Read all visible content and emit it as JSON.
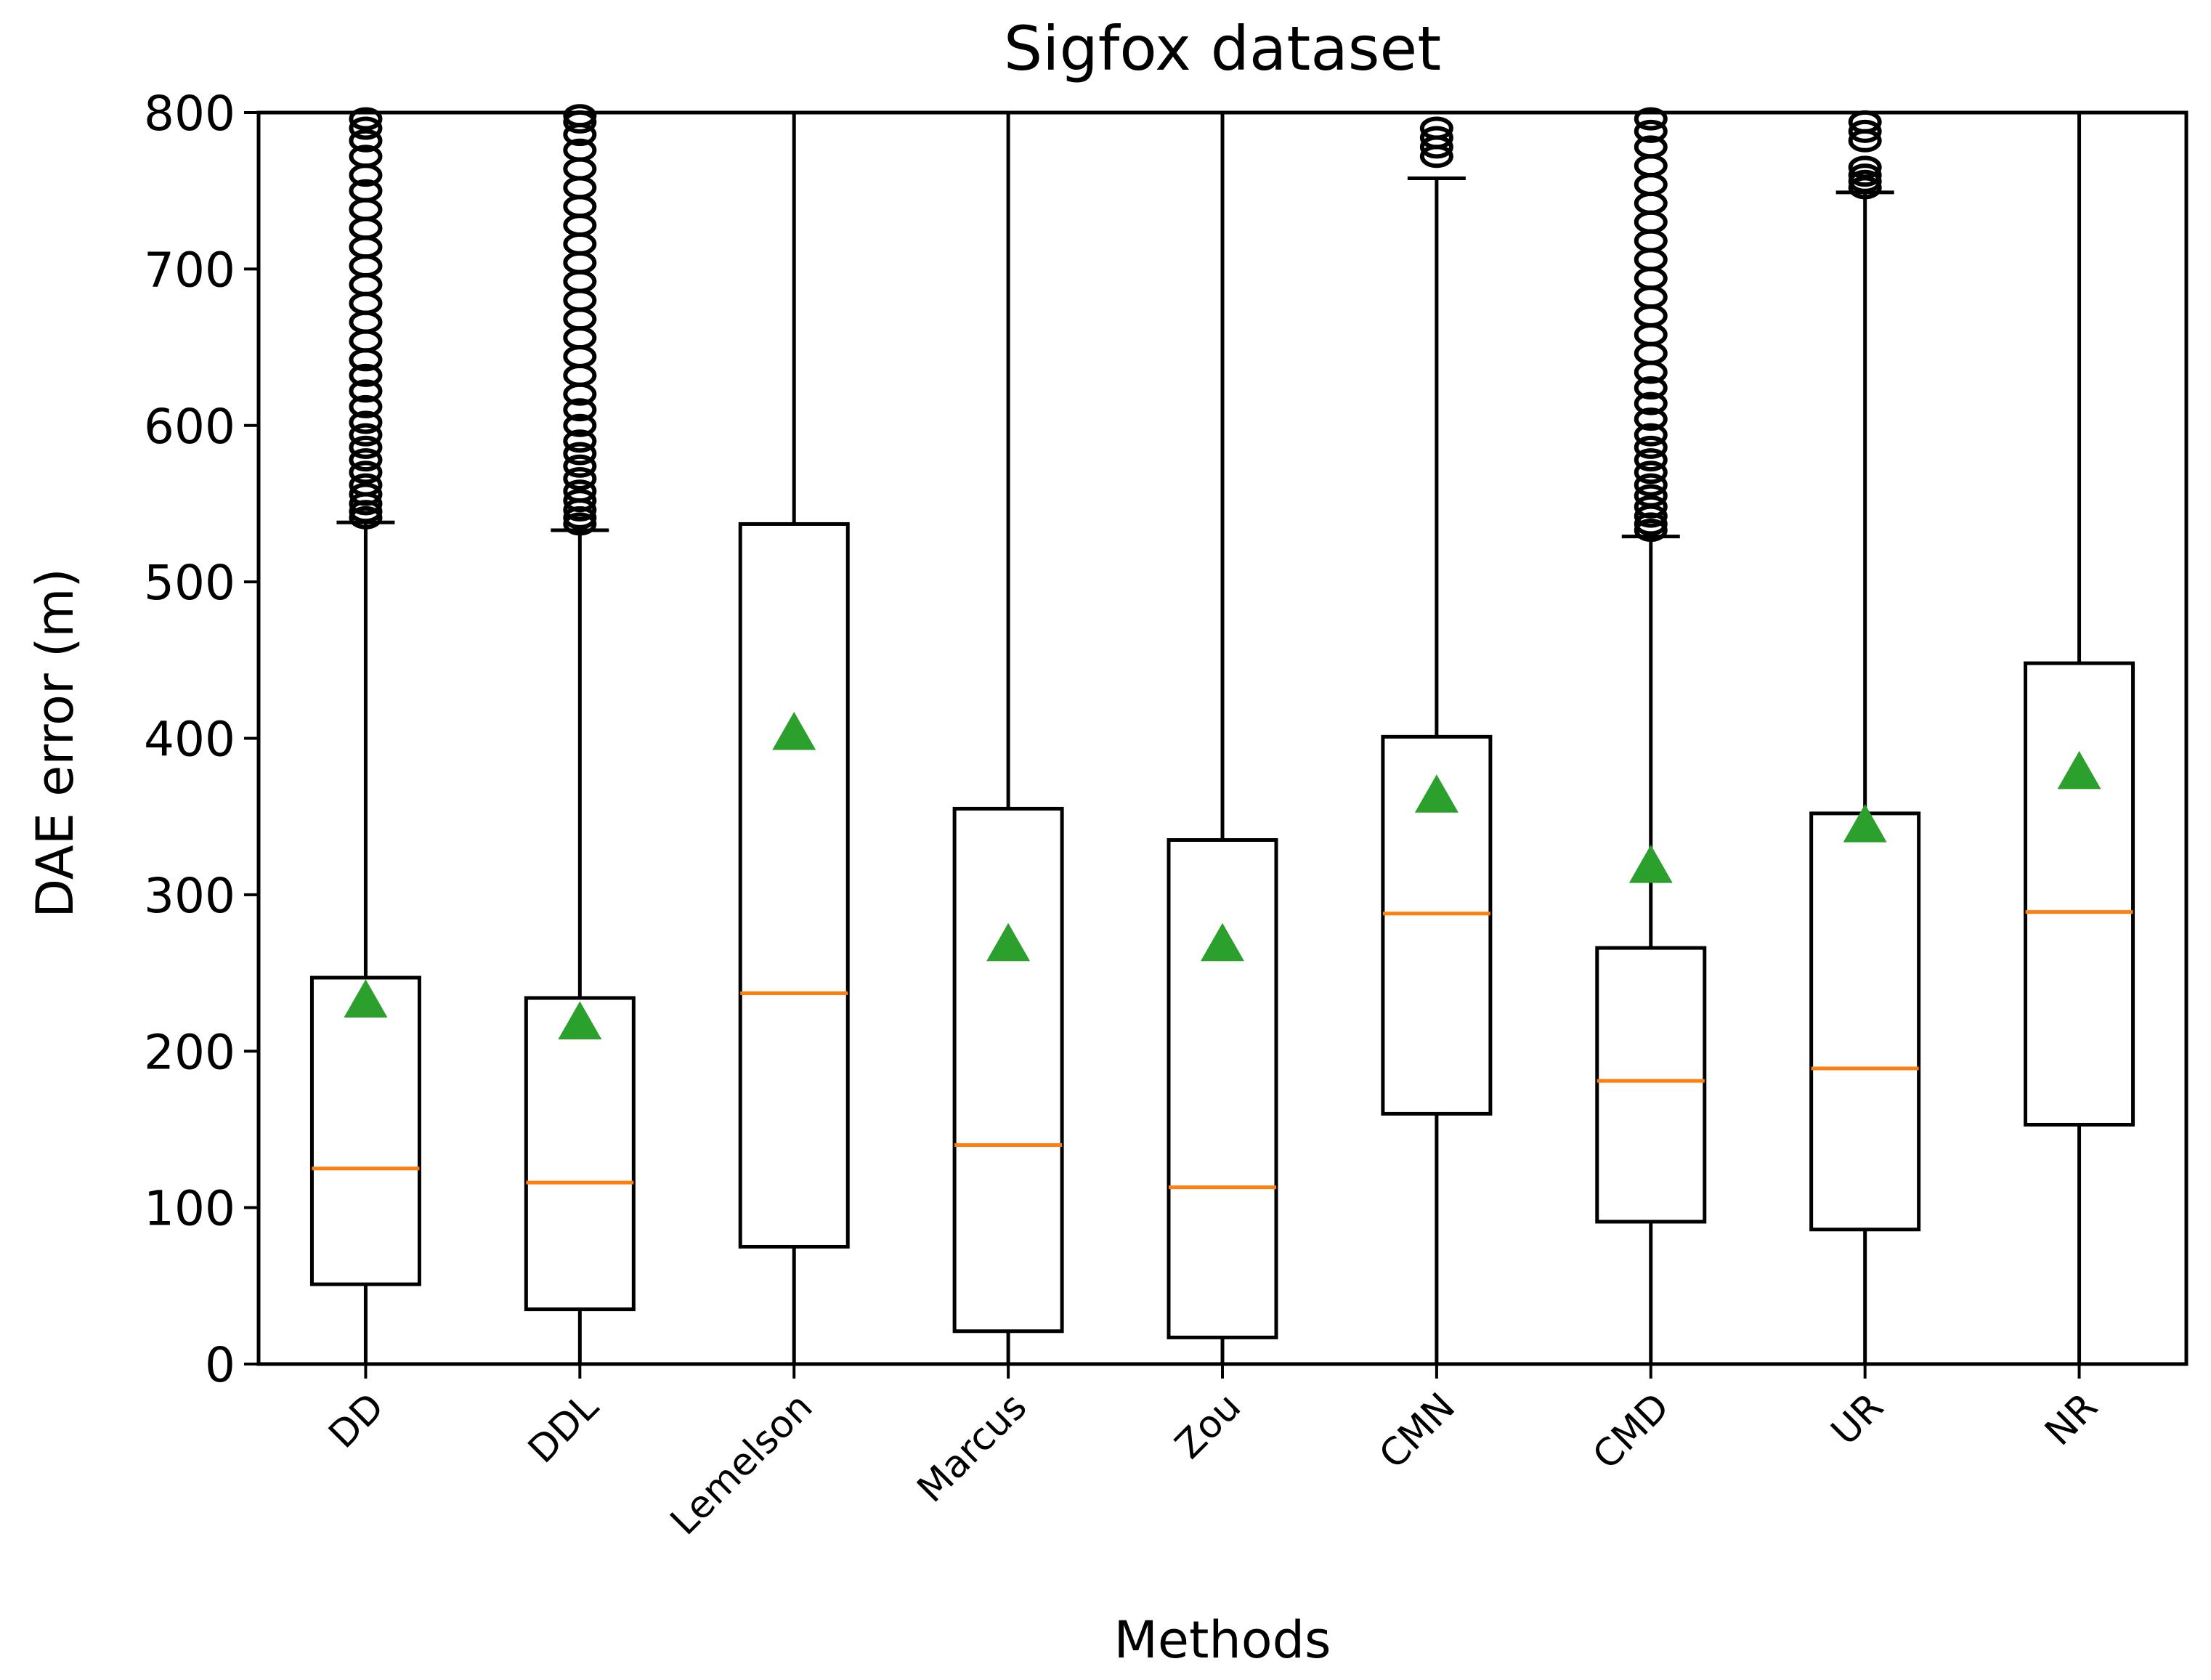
{
  "chart_data": {
    "type": "boxplot",
    "title": "Sigfox dataset",
    "xlabel": "Methods",
    "ylabel": "DAE error (m)",
    "ylim": [
      0,
      800
    ],
    "yticks": [
      0,
      100,
      200,
      300,
      400,
      500,
      600,
      700,
      800
    ],
    "categories": [
      "DD",
      "DDL",
      "Lemelson",
      "Marcus",
      "Zou",
      "CMN",
      "CMD",
      "UR",
      "NR"
    ],
    "boxes": [
      {
        "name": "DD",
        "whisker_low": 0,
        "q1": 51,
        "median": 125,
        "q3": 247,
        "whisker_high": 538,
        "mean": 232,
        "outliers": [
          541,
          545,
          550,
          556,
          562,
          570,
          578,
          586,
          594,
          602,
          612,
          622,
          632,
          642,
          654,
          666,
          678,
          690,
          702,
          714,
          726,
          738,
          750,
          760,
          772,
          782,
          790,
          796
        ]
      },
      {
        "name": "DDL",
        "whisker_low": 0,
        "q1": 35,
        "median": 116,
        "q3": 234,
        "whisker_high": 533,
        "mean": 218,
        "outliers": [
          537,
          541,
          546,
          552,
          558,
          566,
          574,
          582,
          590,
          600,
          610,
          620,
          632,
          644,
          656,
          668,
          680,
          692,
          704,
          716,
          728,
          740,
          752,
          764,
          776,
          786,
          794,
          798
        ]
      },
      {
        "name": "Lemelson",
        "whisker_low": 0,
        "q1": 75,
        "median": 237,
        "q3": 537,
        "whisker_high": 800,
        "mean": 403,
        "outliers": []
      },
      {
        "name": "Marcus",
        "whisker_low": 0,
        "q1": 21,
        "median": 140,
        "q3": 355,
        "whisker_high": 800,
        "mean": 268,
        "outliers": []
      },
      {
        "name": "Zou",
        "whisker_low": 0,
        "q1": 17,
        "median": 113,
        "q3": 335,
        "whisker_high": 800,
        "mean": 268,
        "outliers": []
      },
      {
        "name": "CMN",
        "whisker_low": 0,
        "q1": 160,
        "median": 288,
        "q3": 401,
        "whisker_high": 758,
        "mean": 363,
        "outliers": [
          772,
          778,
          784,
          790
        ]
      },
      {
        "name": "CMD",
        "whisker_low": 0,
        "q1": 91,
        "median": 181,
        "q3": 266,
        "whisker_high": 529,
        "mean": 318,
        "outliers": [
          533,
          537,
          542,
          548,
          555,
          562,
          570,
          578,
          586,
          594,
          604,
          614,
          624,
          634,
          646,
          658,
          670,
          682,
          694,
          706,
          718,
          730,
          742,
          754,
          766,
          778,
          788,
          796
        ]
      },
      {
        "name": "UR",
        "whisker_low": 0,
        "q1": 86,
        "median": 189,
        "q3": 352,
        "whisker_high": 749,
        "mean": 344,
        "outliers": [
          752,
          756,
          760,
          765,
          782,
          788,
          794
        ]
      },
      {
        "name": "NR",
        "whisker_low": 0,
        "q1": 153,
        "median": 289,
        "q3": 448,
        "whisker_high": 800,
        "mean": 378,
        "outliers": []
      }
    ],
    "colors": {
      "median": "#ff7f0e",
      "mean_marker": "#2ca02c",
      "box": "#000000"
    },
    "grid": false
  }
}
